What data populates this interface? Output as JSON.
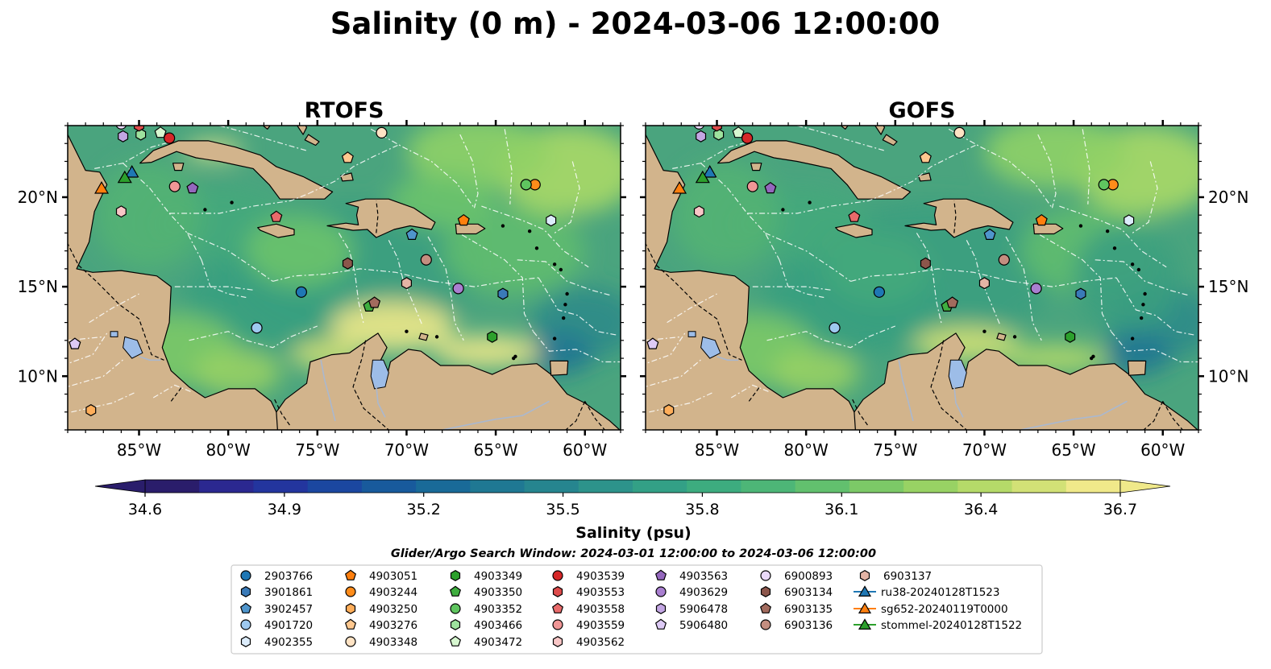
{
  "figure": {
    "title": "Salinity (0 m) - 2024-03-06 12:00:00",
    "search_window": "Glider/Argo Search Window: 2024-03-01 12:00:00 to 2024-03-06 12:00:00"
  },
  "panels": [
    {
      "title": "RTOFS"
    },
    {
      "title": "GOFS"
    }
  ],
  "axes": {
    "lon_ticks": [
      {
        "value": -85,
        "label": "85°W"
      },
      {
        "value": -80,
        "label": "80°W"
      },
      {
        "value": -75,
        "label": "75°W"
      },
      {
        "value": -70,
        "label": "70°W"
      },
      {
        "value": -65,
        "label": "65°W"
      },
      {
        "value": -60,
        "label": "60°W"
      }
    ],
    "lat_ticks": [
      {
        "value": 20,
        "label": "20°N"
      },
      {
        "value": 15,
        "label": "15°N"
      },
      {
        "value": 10,
        "label": "10°N"
      }
    ],
    "lon_range": [
      -89,
      -58
    ],
    "lat_range": [
      7,
      24
    ]
  },
  "colorbar": {
    "label": "Salinity (psu)",
    "min": 34.6,
    "max": 36.7,
    "extend": "both",
    "tick_labels": [
      "34.6",
      "34.9",
      "35.2",
      "35.5",
      "35.8",
      "36.1",
      "36.4",
      "36.7"
    ],
    "colors": [
      "#2a1d6b",
      "#2b2890",
      "#23359e",
      "#1b47a0",
      "#185a9c",
      "#196a98",
      "#1f7893",
      "#26858f",
      "#2d938b",
      "#33a086",
      "#3dac7f",
      "#4db677",
      "#62c06e",
      "#7cc967",
      "#98d264",
      "#b5da69",
      "#d2e176",
      "#f0e98a"
    ]
  },
  "colors": {
    "land": "#d2b48c",
    "pacific": "#2a1d6b",
    "caribbean_base": "#4aa47e",
    "caribbean_mid": "#5db974",
    "fresh_plume": "#f0e98a",
    "lake": "#9dbde8",
    "eez_lines": "#ffffff"
  },
  "legend": {
    "items": [
      {
        "label": "2903766",
        "marker": "circle",
        "color": "#1f77b4"
      },
      {
        "label": "3901861",
        "marker": "hexagon",
        "color": "#3a7ab8"
      },
      {
        "label": "3902457",
        "marker": "pentagon",
        "color": "#4f95cc"
      },
      {
        "label": "4901720",
        "marker": "circle",
        "color": "#9ec9ef"
      },
      {
        "label": "4902355",
        "marker": "hexagon",
        "color": "#dcecfb"
      },
      {
        "label": "4903051",
        "marker": "pentagon",
        "color": "#ff7f0e"
      },
      {
        "label": "4903244",
        "marker": "circle",
        "color": "#ff8c1a"
      },
      {
        "label": "4903250",
        "marker": "hexagon",
        "color": "#ffae5a"
      },
      {
        "label": "4903276",
        "marker": "pentagon",
        "color": "#ffc88f"
      },
      {
        "label": "4903348",
        "marker": "circle",
        "color": "#ffe3c4"
      },
      {
        "label": "4903349",
        "marker": "hexagon",
        "color": "#2ca02c"
      },
      {
        "label": "4903350",
        "marker": "pentagon",
        "color": "#3fae3f"
      },
      {
        "label": "4903352",
        "marker": "circle",
        "color": "#5fc55f"
      },
      {
        "label": "4903466",
        "marker": "hexagon",
        "color": "#9ee29e"
      },
      {
        "label": "4903472",
        "marker": "pentagon",
        "color": "#d7f7d0"
      },
      {
        "label": "4903539",
        "marker": "circle",
        "color": "#d62728"
      },
      {
        "label": "4903553",
        "marker": "hexagon",
        "color": "#de4b4b"
      },
      {
        "label": "4903558",
        "marker": "pentagon",
        "color": "#e86a6a"
      },
      {
        "label": "4903559",
        "marker": "circle",
        "color": "#f09696"
      },
      {
        "label": "4903562",
        "marker": "hexagon",
        "color": "#f8c6c6"
      },
      {
        "label": "4903563",
        "marker": "pentagon",
        "color": "#9467bd"
      },
      {
        "label": "4903629",
        "marker": "circle",
        "color": "#a97fd0"
      },
      {
        "label": "5906478",
        "marker": "hexagon",
        "color": "#c3a6e3"
      },
      {
        "label": "5906480",
        "marker": "pentagon",
        "color": "#ddcaf5"
      },
      {
        "label": "6900893",
        "marker": "circle",
        "color": "#ead9fa"
      },
      {
        "label": "6903134",
        "marker": "hexagon",
        "color": "#8c564b"
      },
      {
        "label": "6903135",
        "marker": "pentagon",
        "color": "#a26b5e"
      },
      {
        "label": "6903136",
        "marker": "circle",
        "color": "#c48e80"
      },
      {
        "label": "6903137",
        "marker": "hexagon",
        "color": "#e3b4a5"
      },
      {
        "label": "ru38-20240128T1523",
        "marker": "glider",
        "color": "#1f77b4"
      },
      {
        "label": "sg652-20240119T0000",
        "marker": "glider",
        "color": "#ff7f0e"
      },
      {
        "label": "stommel-20240128T1522",
        "marker": "glider",
        "color": "#2ca02c"
      }
    ]
  },
  "floats": [
    {
      "id": "2903766",
      "lon": -75.9,
      "lat": 14.7
    },
    {
      "id": "3901861",
      "lon": -64.6,
      "lat": 14.6
    },
    {
      "id": "3902457",
      "lon": -69.7,
      "lat": 17.9
    },
    {
      "id": "4901720",
      "lon": -78.4,
      "lat": 12.7
    },
    {
      "id": "4902355",
      "lon": -61.9,
      "lat": 18.7
    },
    {
      "id": "4903051",
      "lon": -66.8,
      "lat": 18.7
    },
    {
      "id": "4903244",
      "lon": -62.8,
      "lat": 20.7
    },
    {
      "id": "4903250",
      "lon": -87.7,
      "lat": 8.1
    },
    {
      "id": "4903276",
      "lon": -73.3,
      "lat": 22.2
    },
    {
      "id": "4903348",
      "lon": -71.4,
      "lat": 23.6
    },
    {
      "id": "4903349",
      "lon": -65.2,
      "lat": 12.2
    },
    {
      "id": "4903350",
      "lon": -72.1,
      "lat": 13.9
    },
    {
      "id": "4903352",
      "lon": -63.3,
      "lat": 20.7
    },
    {
      "id": "4903466",
      "lon": -84.9,
      "lat": 23.5
    },
    {
      "id": "4903472",
      "lon": -83.8,
      "lat": 23.6
    },
    {
      "id": "4903539",
      "lon": -83.3,
      "lat": 23.3
    },
    {
      "id": "4903553",
      "lon": -85.0,
      "lat": 24.0
    },
    {
      "id": "4903558",
      "lon": -77.3,
      "lat": 18.9
    },
    {
      "id": "4903559",
      "lon": -83.0,
      "lat": 20.6
    },
    {
      "id": "4903562",
      "lon": -86.0,
      "lat": 19.2
    },
    {
      "id": "4903563",
      "lon": -82.0,
      "lat": 20.5
    },
    {
      "id": "4903629",
      "lon": -67.1,
      "lat": 14.9
    },
    {
      "id": "5906478",
      "lon": -85.9,
      "lat": 23.4
    },
    {
      "id": "5906480",
      "lon": -88.6,
      "lat": 11.8
    },
    {
      "id": "6900893",
      "lon": -86.0,
      "lat": 24.1
    },
    {
      "id": "6903134",
      "lon": -73.3,
      "lat": 16.3
    },
    {
      "id": "6903135",
      "lon": -71.8,
      "lat": 14.1
    },
    {
      "id": "6903136",
      "lon": -68.9,
      "lat": 16.5
    },
    {
      "id": "6903137",
      "lon": -70.0,
      "lat": 15.2
    }
  ],
  "gliders": [
    {
      "id": "ru38-20240128T1523",
      "lon": -85.4,
      "lat": 21.4
    },
    {
      "id": "sg652-20240119T0000",
      "lon": -87.1,
      "lat": 20.5
    },
    {
      "id": "stommel-20240128T1522",
      "lon": -85.8,
      "lat": 21.1
    }
  ]
}
